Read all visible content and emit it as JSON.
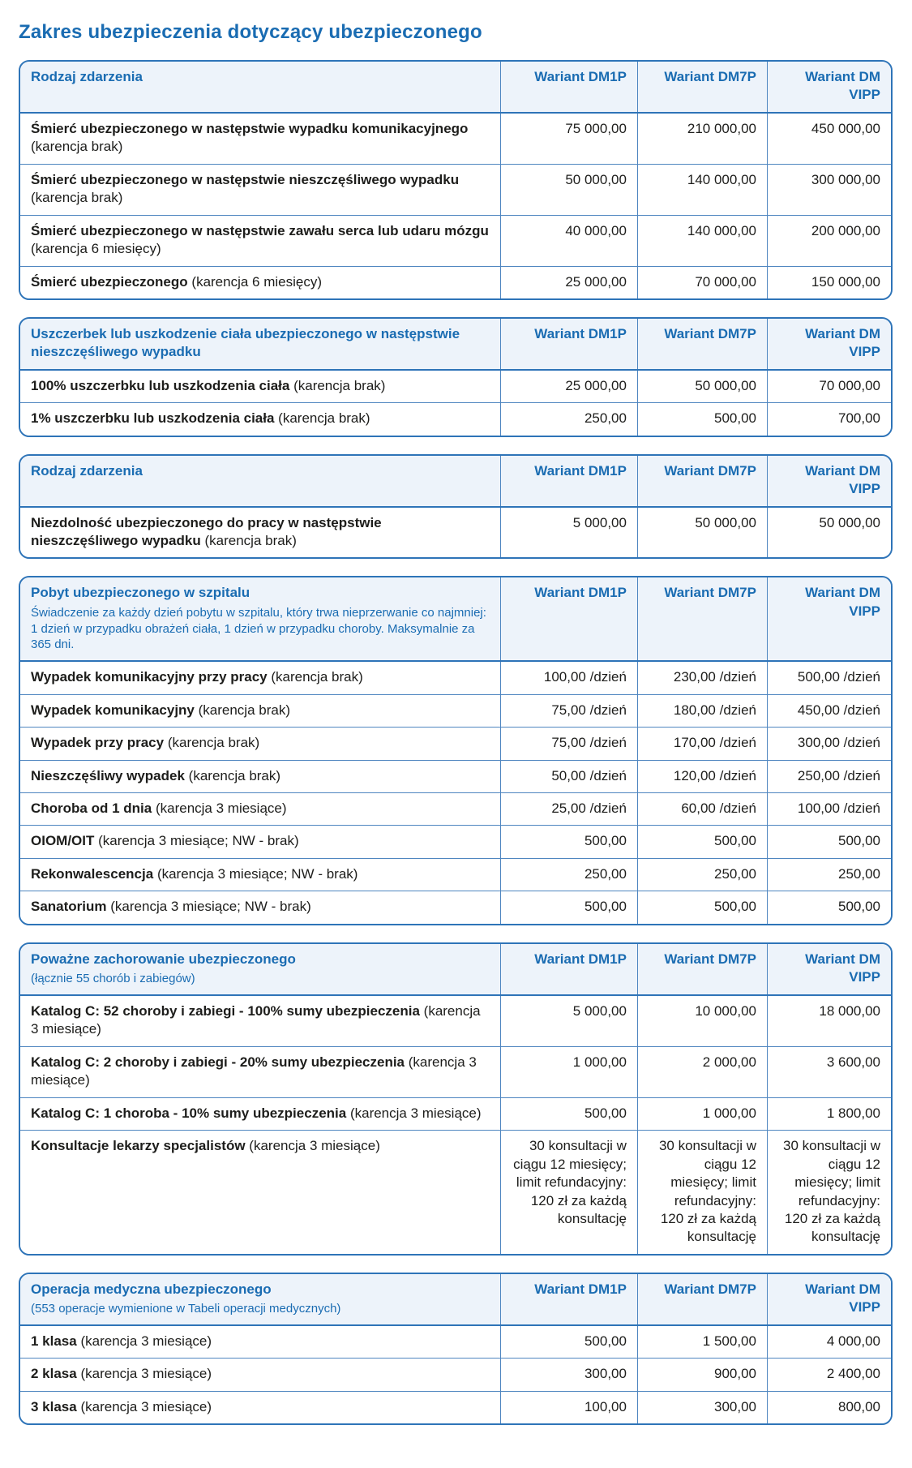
{
  "page": {
    "title": "Zakres ubezpieczenia dotyczący ubezpieczonego"
  },
  "colors": {
    "accent_blue": "#1a6cb2",
    "border_blue": "#2e74b8",
    "line_blue": "#4f86c0",
    "header_bg": "#edf3fa",
    "text_dark": "#1d1d1b"
  },
  "columns": [
    "Wariant DM1P",
    "Wariant DM7P",
    "Wariant DM VIPP"
  ],
  "tables": [
    {
      "id": "rodzaj-zdarzenia-smierc",
      "title": "Rodzaj zdarzenia",
      "subtitle": "",
      "rows": [
        {
          "label": "Śmierć ubezpieczonego w następstwie wypadku komunikacyjnego",
          "note": "(karencja brak)",
          "values": [
            "75 000,00",
            "210 000,00",
            "450 000,00"
          ]
        },
        {
          "label": "Śmierć ubezpieczonego w następstwie nieszczęśliwego wypadku",
          "note": "(karencja brak)",
          "values": [
            "50 000,00",
            "140 000,00",
            "300 000,00"
          ]
        },
        {
          "label": "Śmierć ubezpieczonego w następstwie zawału serca lub udaru mózgu",
          "note": "(karencja 6 miesięcy)",
          "values": [
            "40 000,00",
            "140 000,00",
            "200 000,00"
          ]
        },
        {
          "label": "Śmierć ubezpieczonego",
          "note": "(karencja 6 miesięcy)",
          "values": [
            "25 000,00",
            "70 000,00",
            "150 000,00"
          ]
        }
      ]
    },
    {
      "id": "uszczerbek",
      "title": "Uszczerbek lub uszkodzenie ciała ubezpieczonego w następstwie nieszczęśliwego wypadku",
      "subtitle": "",
      "rows": [
        {
          "label": "100% uszczerbku lub uszkodzenia ciała",
          "note": "(karencja brak)",
          "values": [
            "25 000,00",
            "50 000,00",
            "70 000,00"
          ]
        },
        {
          "label": "1% uszczerbku lub uszkodzenia ciała",
          "note": "(karencja brak)",
          "values": [
            "250,00",
            "500,00",
            "700,00"
          ]
        }
      ]
    },
    {
      "id": "rodzaj-zdarzenia-niezdolnosc",
      "title": "Rodzaj zdarzenia",
      "subtitle": "",
      "rows": [
        {
          "label": "Niezdolność ubezpieczonego do pracy w następstwie nieszczęśliwego wypadku",
          "note": "(karencja brak)",
          "values": [
            "5 000,00",
            "50 000,00",
            "50 000,00"
          ]
        }
      ]
    },
    {
      "id": "pobyt-w-szpitalu",
      "title": "Pobyt ubezpieczonego w szpitalu",
      "subtitle": "Świadczenie za każdy dzień pobytu w szpitalu, który trwa nieprzerwanie co najmniej: 1 dzień w przypadku obrażeń ciała, 1 dzień w przypadku choroby. Maksymalnie za 365 dni.",
      "rows": [
        {
          "label": "Wypadek komunikacyjny przy pracy",
          "note": "(karencja brak)",
          "values": [
            "100,00 /dzień",
            "230,00 /dzień",
            "500,00 /dzień"
          ]
        },
        {
          "label": "Wypadek komunikacyjny",
          "note": "(karencja brak)",
          "values": [
            "75,00 /dzień",
            "180,00 /dzień",
            "450,00 /dzień"
          ]
        },
        {
          "label": "Wypadek przy pracy",
          "note": "(karencja brak)",
          "values": [
            "75,00 /dzień",
            "170,00 /dzień",
            "300,00 /dzień"
          ]
        },
        {
          "label": "Nieszczęśliwy wypadek",
          "note": "(karencja brak)",
          "values": [
            "50,00 /dzień",
            "120,00 /dzień",
            "250,00 /dzień"
          ]
        },
        {
          "label": "Choroba od 1 dnia",
          "note": "(karencja 3 miesiące)",
          "values": [
            "25,00 /dzień",
            "60,00 /dzień",
            "100,00 /dzień"
          ]
        },
        {
          "label": "OIOM/OIT",
          "note": "(karencja 3 miesiące; NW - brak)",
          "values": [
            "500,00",
            "500,00",
            "500,00"
          ]
        },
        {
          "label": "Rekonwalescencja",
          "note": "(karencja 3 miesiące; NW - brak)",
          "values": [
            "250,00",
            "250,00",
            "250,00"
          ]
        },
        {
          "label": "Sanatorium",
          "note": "(karencja 3 miesiące; NW - brak)",
          "values": [
            "500,00",
            "500,00",
            "500,00"
          ]
        }
      ]
    },
    {
      "id": "powazne-zachorowanie",
      "title": "Poważne zachorowanie ubezpieczonego",
      "subtitle": "(łącznie 55 chorób i zabiegów)",
      "rows": [
        {
          "label": "Katalog C: 52 choroby i zabiegi - 100% sumy ubezpieczenia",
          "note": "(karencja 3 miesiące)",
          "values": [
            "5 000,00",
            "10 000,00",
            "18 000,00"
          ]
        },
        {
          "label": "Katalog C: 2 choroby i zabiegi - 20% sumy ubezpieczenia",
          "note": "(karencja 3 miesiące)",
          "values": [
            "1 000,00",
            "2 000,00",
            "3 600,00"
          ]
        },
        {
          "label": "Katalog C: 1 choroba - 10% sumy ubezpieczenia",
          "note": "(karencja 3 miesiące)",
          "values": [
            "500,00",
            "1 000,00",
            "1 800,00"
          ]
        },
        {
          "label": "Konsultacje lekarzy specjalistów",
          "note": "(karencja 3 miesiące)",
          "values": [
            "30 konsultacji w ciągu 12 miesięcy; limit refundacyjny: 120 zł za każdą konsultację",
            "30 konsultacji w ciągu 12 miesięcy; limit refundacyjny: 120 zł za każdą konsultację",
            "30 konsultacji w ciągu 12 miesięcy; limit refundacyjny: 120 zł za każdą konsultację"
          ]
        }
      ]
    },
    {
      "id": "operacja-medyczna",
      "title": "Operacja medyczna ubezpieczonego",
      "subtitle": "(553 operacje wymienione w Tabeli operacji medycznych)",
      "rows": [
        {
          "label": "1 klasa",
          "note": "(karencja 3 miesiące)",
          "values": [
            "500,00",
            "1 500,00",
            "4 000,00"
          ]
        },
        {
          "label": "2 klasa",
          "note": "(karencja 3 miesiące)",
          "values": [
            "300,00",
            "900,00",
            "2 400,00"
          ]
        },
        {
          "label": "3 klasa",
          "note": "(karencja 3 miesiące)",
          "values": [
            "100,00",
            "300,00",
            "800,00"
          ]
        }
      ]
    }
  ]
}
